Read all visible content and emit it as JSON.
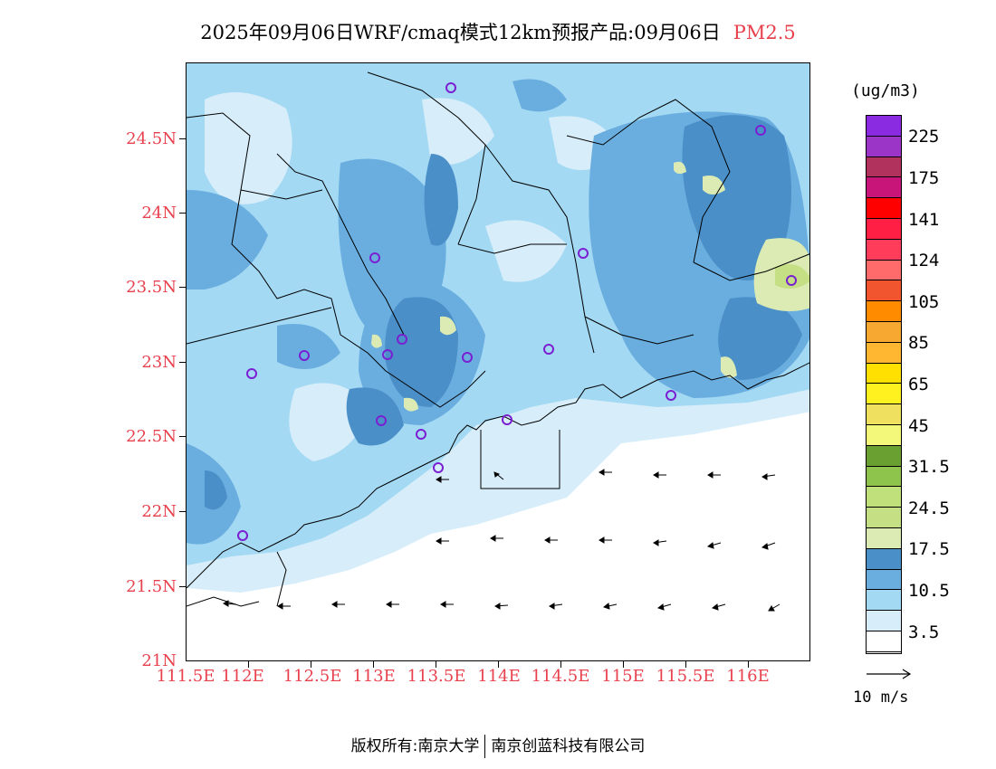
{
  "title": {
    "main": "2025年09月06日WRF/cmaq模式12km预报产品:09月06日",
    "species": "PM2.5",
    "species_color": "#e8414e"
  },
  "axes": {
    "y_labels": [
      "24.5N",
      "24N",
      "23.5N",
      "23N",
      "22.5N",
      "22N",
      "21.5N",
      "21N"
    ],
    "x_labels": [
      "111.5E",
      "112E",
      "112.5E",
      "113E",
      "113.5E",
      "114E",
      "114.5E",
      "115E",
      "115.5E",
      "116E"
    ],
    "label_color": "#e8414e"
  },
  "legend": {
    "unit": "(ug/m3)",
    "colors": [
      "#8a2be2",
      "#9a35c8",
      "#b2325e",
      "#c8157a",
      "#ff0000",
      "#ff1f45",
      "#ff3d5a",
      "#ff6a6a",
      "#f05530",
      "#ff8c00",
      "#f7a830",
      "#ffb732",
      "#ffe000",
      "#fff020",
      "#f0e060",
      "#f3f77a",
      "#6a9f32",
      "#8ec44c",
      "#bfe07a",
      "#c4df84",
      "#dcebb4",
      "#4a8fc8",
      "#6aaee0",
      "#a4d9f3",
      "#d7eefa",
      "#ffffff"
    ],
    "labels": [
      "225",
      "175",
      "141",
      "124",
      "105",
      "85",
      "65",
      "45",
      "31.5",
      "24.5",
      "17.5",
      "10.5",
      "3.5"
    ]
  },
  "reference_vector": {
    "label": "10 m/s"
  },
  "footer": {
    "left": "版权所有:南京大学",
    "right": "南京创蓝科技有限公司"
  }
}
